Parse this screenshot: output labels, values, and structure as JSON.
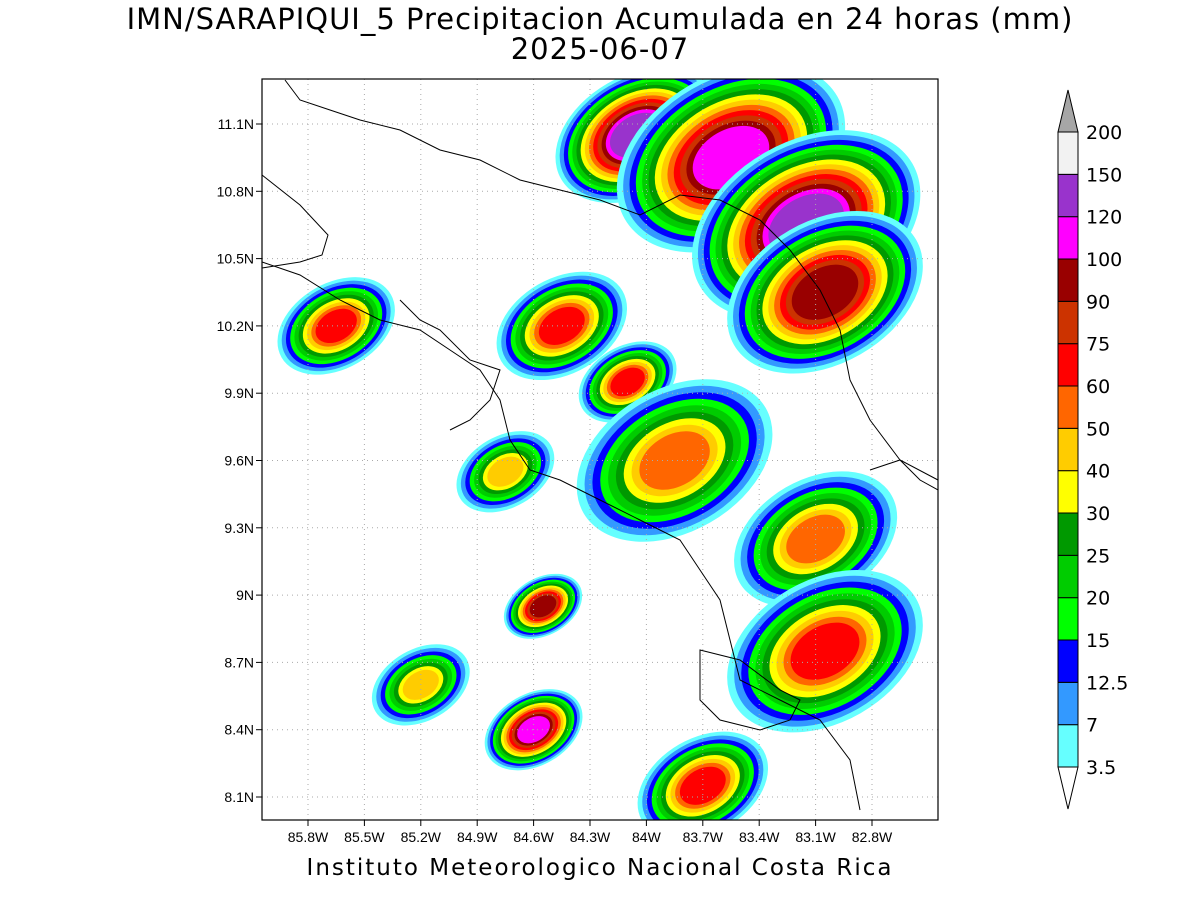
{
  "title": {
    "line1": "IMN/SARAPIQUI_5 Precipitacion Acumulada en 24 horas (mm)",
    "line2": "2025-06-07"
  },
  "footer": "Instituto Meteorologico Nacional Costa Rica",
  "map": {
    "lat_labels": [
      "11.1N",
      "10.8N",
      "10.5N",
      "10.2N",
      "9.9N",
      "9.6N",
      "9.3N",
      "9N",
      "8.7N",
      "8.4N",
      "8.1N"
    ],
    "lat_values": [
      11.1,
      10.8,
      10.5,
      10.2,
      9.9,
      9.6,
      9.3,
      9.0,
      8.7,
      8.4,
      8.1
    ],
    "lon_labels": [
      "85.8W",
      "85.5W",
      "85.2W",
      "84.9W",
      "84.6W",
      "84.3W",
      "84W",
      "83.7W",
      "83.4W",
      "83.1W",
      "82.8W"
    ],
    "lon_values": [
      -85.8,
      -85.5,
      -85.2,
      -84.9,
      -84.6,
      -84.3,
      -84.0,
      -83.7,
      -83.4,
      -83.1,
      -82.8
    ],
    "lat_range": [
      8.0,
      11.3
    ],
    "lon_range": [
      -86.0,
      -83.0
    ],
    "grid": "dotted"
  },
  "colorbar": {
    "labels": [
      "3.5",
      "7",
      "12.5",
      "15",
      "20",
      "25",
      "30",
      "40",
      "50",
      "60",
      "75",
      "90",
      "100",
      "120",
      "150",
      "200"
    ],
    "colors": [
      "#66ffff",
      "#3399ff",
      "#0000ff",
      "#00ff00",
      "#00cc00",
      "#009900",
      "#ffff00",
      "#ffcc00",
      "#ff6600",
      "#ff0000",
      "#cc3300",
      "#990000",
      "#ff00ff",
      "#9933cc",
      "#f2f2f2",
      "#a6a6a6"
    ]
  },
  "blobs": [
    {
      "lat": 11.05,
      "lon": -84.05,
      "level": 13,
      "r": 0.25
    },
    {
      "lat": 10.95,
      "lon": -83.55,
      "level": 12,
      "r": 0.35
    },
    {
      "lat": 10.65,
      "lon": -83.15,
      "level": 13,
      "r": 0.35
    },
    {
      "lat": 10.35,
      "lon": -83.05,
      "level": 11,
      "r": 0.3
    },
    {
      "lat": 10.2,
      "lon": -85.65,
      "level": 9,
      "r": 0.18
    },
    {
      "lat": 10.2,
      "lon": -84.45,
      "level": 9,
      "r": 0.2
    },
    {
      "lat": 9.95,
      "lon": -84.1,
      "level": 9,
      "r": 0.15
    },
    {
      "lat": 9.6,
      "lon": -83.85,
      "level": 8,
      "r": 0.3
    },
    {
      "lat": 9.25,
      "lon": -83.1,
      "level": 8,
      "r": 0.25
    },
    {
      "lat": 8.95,
      "lon": -84.55,
      "level": 11,
      "r": 0.12
    },
    {
      "lat": 8.75,
      "lon": -83.05,
      "level": 9,
      "r": 0.3
    },
    {
      "lat": 8.4,
      "lon": -84.6,
      "level": 12,
      "r": 0.15
    },
    {
      "lat": 8.15,
      "lon": -83.7,
      "level": 9,
      "r": 0.2
    },
    {
      "lat": 9.55,
      "lon": -84.75,
      "level": 7,
      "r": 0.15
    },
    {
      "lat": 8.6,
      "lon": -85.2,
      "level": 7,
      "r": 0.15
    }
  ]
}
